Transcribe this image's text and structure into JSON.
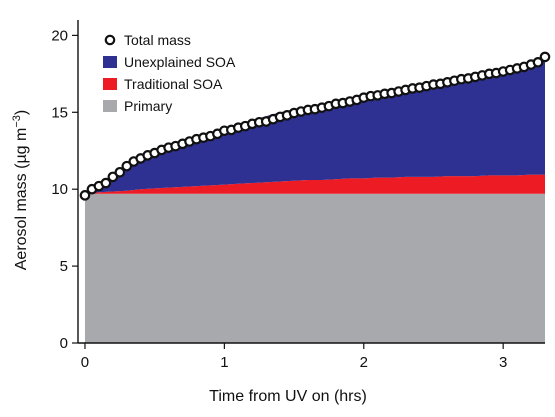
{
  "chart_data": {
    "type": "area",
    "xlabel": "Time from UV on (hrs)",
    "ylabel": {
      "main": "Aerosol mass (µg m",
      "exponent": "−3",
      "close": ")"
    },
    "xlim": [
      -0.05,
      3.3
    ],
    "ylim": [
      0,
      21
    ],
    "xticks": [
      0,
      1,
      2,
      3
    ],
    "xtick_labels": [
      "0",
      "1",
      "2",
      "3"
    ],
    "yticks": [
      0,
      5,
      10,
      15,
      20
    ],
    "ytick_labels": [
      "0",
      "5",
      "10",
      "15",
      "20"
    ],
    "stacked": true,
    "grid": false,
    "legend_position": "top-left",
    "x": [
      0,
      0.1,
      0.2,
      0.3,
      0.4,
      0.5,
      0.6,
      0.7,
      0.8,
      0.9,
      1.0,
      1.1,
      1.2,
      1.3,
      1.4,
      1.5,
      1.6,
      1.7,
      1.8,
      1.9,
      2.0,
      2.1,
      2.2,
      2.3,
      2.4,
      2.5,
      2.6,
      2.7,
      2.8,
      2.9,
      3.0,
      3.1,
      3.2,
      3.3
    ],
    "series": [
      {
        "name": "Primary",
        "color": "#a7a9ac",
        "values": [
          9.7,
          9.7,
          9.7,
          9.7,
          9.7,
          9.7,
          9.7,
          9.7,
          9.7,
          9.7,
          9.7,
          9.7,
          9.7,
          9.7,
          9.7,
          9.7,
          9.7,
          9.7,
          9.7,
          9.7,
          9.7,
          9.7,
          9.7,
          9.7,
          9.7,
          9.7,
          9.7,
          9.7,
          9.7,
          9.7,
          9.7,
          9.7,
          9.7,
          9.7
        ]
      },
      {
        "name": "Traditional SOA",
        "color": "#ed1c24",
        "values": [
          0.0,
          0.1,
          0.15,
          0.2,
          0.3,
          0.35,
          0.4,
          0.45,
          0.5,
          0.55,
          0.6,
          0.65,
          0.7,
          0.75,
          0.8,
          0.85,
          0.9,
          0.9,
          0.95,
          1.0,
          1.0,
          1.05,
          1.05,
          1.1,
          1.1,
          1.1,
          1.15,
          1.15,
          1.15,
          1.2,
          1.2,
          1.2,
          1.25,
          1.25
        ]
      },
      {
        "name": "Unexplained SOA",
        "color": "#2e3192",
        "values": [
          0.0,
          0.5,
          1.0,
          1.6,
          2.1,
          2.5,
          2.8,
          3.0,
          3.2,
          3.45,
          3.7,
          3.9,
          4.1,
          4.3,
          4.5,
          4.65,
          4.8,
          4.95,
          5.1,
          5.25,
          5.4,
          5.55,
          5.7,
          5.8,
          5.9,
          6.0,
          6.1,
          6.2,
          6.3,
          6.4,
          6.55,
          6.7,
          6.95,
          7.45
        ]
      }
    ],
    "total_mass": {
      "name": "Total mass",
      "x": [
        0,
        0.05,
        0.1,
        0.15,
        0.2,
        0.25,
        0.3,
        0.35,
        0.4,
        0.45,
        0.5,
        0.55,
        0.6,
        0.65,
        0.7,
        0.75,
        0.8,
        0.85,
        0.9,
        0.95,
        1.0,
        1.05,
        1.1,
        1.15,
        1.2,
        1.25,
        1.3,
        1.35,
        1.4,
        1.45,
        1.5,
        1.55,
        1.6,
        1.65,
        1.7,
        1.75,
        1.8,
        1.85,
        1.9,
        1.95,
        2.0,
        2.05,
        2.1,
        2.15,
        2.2,
        2.25,
        2.3,
        2.35,
        2.4,
        2.45,
        2.5,
        2.55,
        2.6,
        2.65,
        2.7,
        2.75,
        2.8,
        2.85,
        2.9,
        2.95,
        3.0,
        3.05,
        3.1,
        3.15,
        3.2,
        3.25,
        3.3
      ],
      "values": [
        9.6,
        10.0,
        10.2,
        10.4,
        10.8,
        11.1,
        11.5,
        11.8,
        12.0,
        12.2,
        12.35,
        12.55,
        12.7,
        12.8,
        12.95,
        13.1,
        13.25,
        13.35,
        13.45,
        13.6,
        13.8,
        13.85,
        14.0,
        14.1,
        14.25,
        14.35,
        14.4,
        14.55,
        14.7,
        14.8,
        14.95,
        15.05,
        15.15,
        15.2,
        15.3,
        15.4,
        15.55,
        15.6,
        15.7,
        15.8,
        15.95,
        16.05,
        16.1,
        16.2,
        16.25,
        16.35,
        16.45,
        16.55,
        16.6,
        16.7,
        16.8,
        16.85,
        16.95,
        17.05,
        17.15,
        17.2,
        17.3,
        17.4,
        17.5,
        17.55,
        17.65,
        17.75,
        17.85,
        17.95,
        18.1,
        18.25,
        18.6
      ]
    },
    "legend": [
      {
        "label": "Total mass",
        "marker": "open-circle"
      },
      {
        "label": "Unexplained SOA",
        "color": "#2e3192"
      },
      {
        "label": "Traditional SOA",
        "color": "#ed1c24"
      },
      {
        "label": "Primary",
        "color": "#a7a9ac"
      }
    ]
  }
}
